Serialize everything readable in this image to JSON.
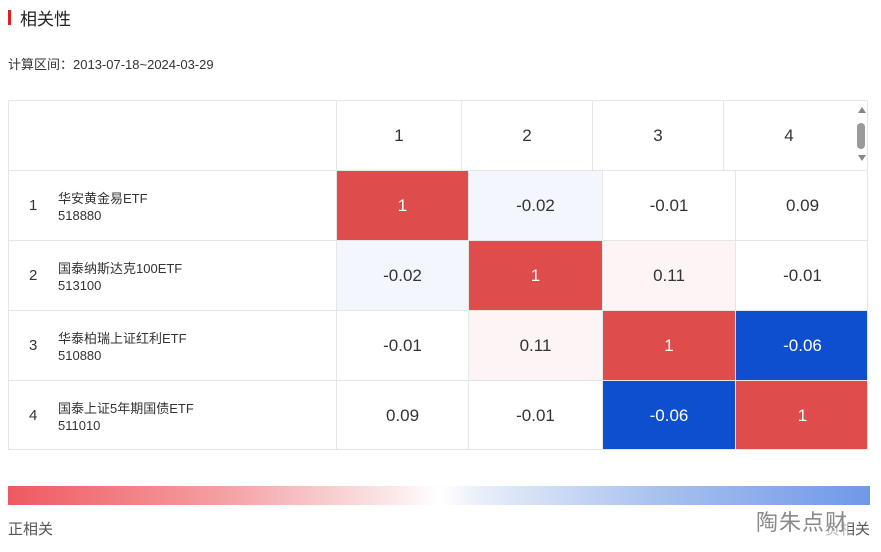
{
  "title": "相关性",
  "calc_range": "计算区间：2013-07-18~2024-03-29",
  "table": {
    "columns": [
      "1",
      "2",
      "3",
      "4"
    ],
    "rows": [
      {
        "index": "1",
        "name": "华安黄金易ETF",
        "code": "518880",
        "values": [
          "1",
          "-0.02",
          "-0.01",
          "0.09"
        ]
      },
      {
        "index": "2",
        "name": "国泰纳斯达克100ETF",
        "code": "513100",
        "values": [
          "-0.02",
          "1",
          "0.11",
          "-0.01"
        ]
      },
      {
        "index": "3",
        "name": "华泰柏瑞上证红利ETF",
        "code": "510880",
        "values": [
          "-0.01",
          "0.11",
          "1",
          "-0.06"
        ]
      },
      {
        "index": "4",
        "name": "国泰上证5年期国债ETF",
        "code": "511010",
        "values": [
          "0.09",
          "-0.01",
          "-0.06",
          "1"
        ]
      }
    ]
  },
  "colors": {
    "positive_strong": "#de4c4c",
    "negative_strong": "#0d4fcf",
    "neg_faint": "#f3f6fd",
    "pos_faint": "#fdf5f5",
    "neutral": "#ffffff"
  },
  "legend": {
    "left_label": "正相关",
    "right_label": "负相关"
  },
  "watermark": "陶朱点财"
}
